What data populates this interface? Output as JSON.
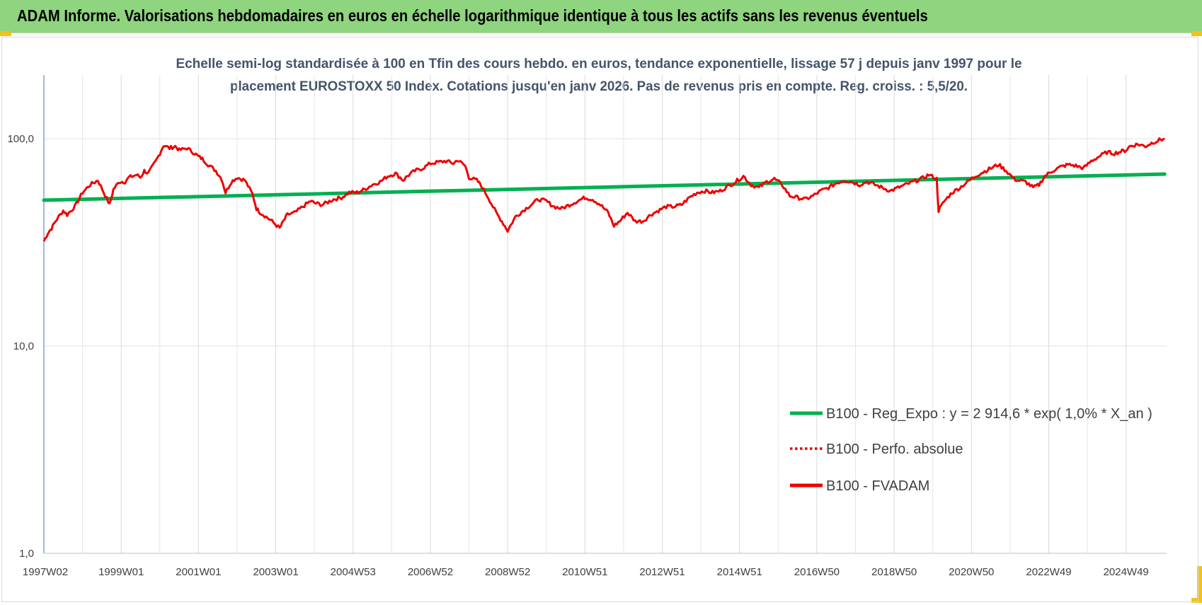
{
  "header": {
    "title": "ADAM Informe. Valorisations hebdomadaires en euros en échelle logarithmique identique à tous les actifs sans les revenus éventuels"
  },
  "chart_data": {
    "type": "line",
    "title_lines": [
      "Echelle semi-log standardisée à 100 en Tfin des cours hebdo. en euros, tendance exponentielle, lissage 57 j depuis janv 1997 pour le",
      "placement EUROSTOXX 50 Index. Cotations jusqu'en janv 2026. Pas de revenus pris en compte. Reg. croiss. : 5,5/20."
    ],
    "y_scale": "log",
    "ylim": [
      1,
      200
    ],
    "y_ticks": [
      {
        "value": 1,
        "label": "1,0"
      },
      {
        "value": 10,
        "label": "10,0"
      },
      {
        "value": 100,
        "label": "100,0"
      }
    ],
    "xlim": [
      1997.0,
      2026.05
    ],
    "x_ticks": [
      {
        "value": 1997.0,
        "label": "1997W02"
      },
      {
        "value": 1999.0,
        "label": "1999W01"
      },
      {
        "value": 2001.0,
        "label": "2001W01"
      },
      {
        "value": 2003.0,
        "label": "2003W01"
      },
      {
        "value": 2005.0,
        "label": "2004W53"
      },
      {
        "value": 2007.0,
        "label": "2006W52"
      },
      {
        "value": 2009.0,
        "label": "2008W52"
      },
      {
        "value": 2011.0,
        "label": "2010W51"
      },
      {
        "value": 2013.0,
        "label": "2012W51"
      },
      {
        "value": 2015.0,
        "label": "2014W51"
      },
      {
        "value": 2017.0,
        "label": "2016W50"
      },
      {
        "value": 2019.0,
        "label": "2018W50"
      },
      {
        "value": 2021.0,
        "label": "2020W50"
      },
      {
        "value": 2023.0,
        "label": "2022W49"
      },
      {
        "value": 2025.0,
        "label": "2024W49"
      }
    ],
    "grid": "vertical",
    "legend_position": "lower-right",
    "series": [
      {
        "name": "B100 - Reg_Expo : y = 2 914,6 * exp( 1,0% *  X_an )",
        "color": "#00b050",
        "style": "solid",
        "x": [
          1997.0,
          2026.0
        ],
        "y": [
          50.5,
          67.5
        ]
      },
      {
        "name": "B100 - Perfo. absolue",
        "color": "#e00000",
        "style": "dotted",
        "x": [],
        "y": []
      },
      {
        "name": "B100 - FVADAM",
        "color": "#ee0000",
        "style": "solid",
        "x": [
          1997.0,
          1997.1,
          1997.2,
          1997.3,
          1997.5,
          1997.6,
          1997.8,
          1998.0,
          1998.2,
          1998.4,
          1998.55,
          1998.7,
          1998.8,
          1998.95,
          1999.1,
          1999.2,
          1999.4,
          1999.5,
          1999.6,
          1999.7,
          1999.9,
          2000.0,
          2000.1,
          2000.25,
          2000.4,
          2000.5,
          2000.7,
          2000.9,
          2001.0,
          2001.1,
          2001.25,
          2001.45,
          2001.6,
          2001.7,
          2001.85,
          2002.0,
          2002.2,
          2002.4,
          2002.5,
          2002.6,
          2002.75,
          2002.9,
          2003.1,
          2003.2,
          2003.3,
          2003.5,
          2003.7,
          2003.9,
          2004.0,
          2004.2,
          2004.5,
          2004.7,
          2004.9,
          2005.1,
          2005.3,
          2005.5,
          2005.7,
          2005.9,
          2006.1,
          2006.3,
          2006.4,
          2006.6,
          2006.8,
          2007.0,
          2007.2,
          2007.4,
          2007.6,
          2007.7,
          2007.9,
          2008.0,
          2008.2,
          2008.3,
          2008.5,
          2008.7,
          2008.85,
          2009.0,
          2009.2,
          2009.4,
          2009.6,
          2009.8,
          2010.0,
          2010.2,
          2010.4,
          2010.6,
          2010.8,
          2011.0,
          2011.2,
          2011.4,
          2011.6,
          2011.75,
          2011.9,
          2012.1,
          2012.3,
          2012.5,
          2012.7,
          2012.9,
          2013.1,
          2013.3,
          2013.5,
          2013.7,
          2013.9,
          2014.1,
          2014.3,
          2014.5,
          2014.7,
          2014.9,
          2015.1,
          2015.3,
          2015.5,
          2015.7,
          2015.9,
          2016.1,
          2016.3,
          2016.5,
          2016.7,
          2016.9,
          2017.1,
          2017.3,
          2017.5,
          2017.7,
          2017.9,
          2018.1,
          2018.3,
          2018.5,
          2018.7,
          2018.9,
          2019.1,
          2019.3,
          2019.5,
          2019.7,
          2019.9,
          2020.1,
          2020.15,
          2020.3,
          2020.5,
          2020.7,
          2020.9,
          2021.1,
          2021.3,
          2021.5,
          2021.7,
          2021.9,
          2022.1,
          2022.2,
          2022.4,
          2022.6,
          2022.75,
          2022.9,
          2023.1,
          2023.3,
          2023.5,
          2023.7,
          2023.9,
          2024.1,
          2024.3,
          2024.5,
          2024.7,
          2024.9,
          2025.0,
          2025.1,
          2025.3,
          2025.5,
          2025.7,
          2025.9,
          2026.0
        ],
        "y": [
          32,
          35,
          37,
          40,
          45,
          43,
          47,
          55,
          60,
          63,
          55,
          48,
          57,
          62,
          62,
          65,
          67,
          65,
          70,
          68,
          78,
          85,
          93,
          90,
          92,
          88,
          90,
          85,
          82,
          80,
          75,
          70,
          64,
          55,
          62,
          65,
          63,
          54,
          46,
          44,
          42,
          40,
          37,
          40,
          43,
          44,
          47,
          50,
          49,
          48,
          51,
          52,
          55,
          55,
          57,
          60,
          62,
          66,
          68,
          63,
          66,
          70,
          72,
          76,
          77,
          78,
          76,
          79,
          74,
          65,
          63,
          60,
          52,
          44,
          40,
          36,
          42,
          45,
          48,
          51,
          50,
          47,
          46,
          48,
          50,
          52,
          51,
          48,
          44,
          38,
          40,
          44,
          40,
          40,
          43,
          45,
          47,
          47,
          48,
          52,
          55,
          56,
          55,
          56,
          59,
          62,
          66,
          60,
          58,
          62,
          64,
          60,
          53,
          52,
          51,
          53,
          56,
          58,
          61,
          63,
          62,
          60,
          62,
          60,
          58,
          56,
          58,
          60,
          62,
          64,
          67,
          64,
          45,
          50,
          55,
          58,
          62,
          66,
          69,
          72,
          75,
          70,
          64,
          63,
          62,
          58,
          60,
          66,
          70,
          73,
          75,
          74,
          72,
          78,
          82,
          86,
          85,
          87,
          88,
          92,
          94,
          92,
          96,
          99,
          100
        ]
      }
    ]
  }
}
